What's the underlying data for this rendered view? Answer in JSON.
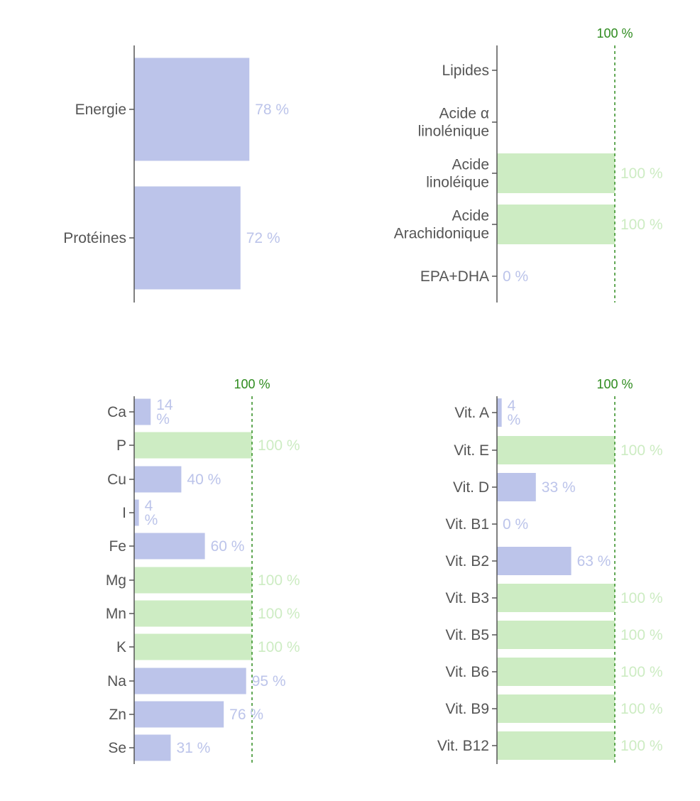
{
  "chart_data": [
    {
      "type": "bar",
      "orientation": "horizontal",
      "categories": [
        "Energie",
        "Protéines"
      ],
      "values": [
        78,
        72
      ],
      "labels": [
        "78 %",
        "72 %"
      ],
      "xlim": [
        0,
        100
      ],
      "reference_line": null,
      "grid": false
    },
    {
      "type": "bar",
      "orientation": "horizontal",
      "categories": [
        [
          "Lipides"
        ],
        [
          "Acide α",
          "linolénique"
        ],
        [
          "Acide",
          "linoléique"
        ],
        [
          "Acide",
          "Arachidonique"
        ],
        [
          "EPA+DHA"
        ]
      ],
      "values": [
        null,
        null,
        100,
        100,
        0
      ],
      "labels": [
        "",
        "",
        "100 %",
        "100 %",
        "0 %"
      ],
      "xlim": [
        0,
        100
      ],
      "reference_line": {
        "value": 100,
        "label": "100 %"
      },
      "grid": false
    },
    {
      "type": "bar",
      "orientation": "horizontal",
      "categories": [
        "Ca",
        "P",
        "Cu",
        "I",
        "Fe",
        "Mg",
        "Mn",
        "K",
        "Na",
        "Zn",
        "Se"
      ],
      "values": [
        14,
        100,
        40,
        4,
        60,
        100,
        100,
        100,
        95,
        76,
        31
      ],
      "labels": [
        [
          "14",
          "%"
        ],
        [
          "100 %"
        ],
        [
          "40 %"
        ],
        [
          "4",
          "%"
        ],
        [
          "60 %"
        ],
        [
          "100 %"
        ],
        [
          "100 %"
        ],
        [
          "100 %"
        ],
        [
          "95 %"
        ],
        [
          "76 %"
        ],
        [
          "31 %"
        ]
      ],
      "xlim": [
        0,
        100
      ],
      "reference_line": {
        "value": 100,
        "label": "100 %"
      },
      "grid": false
    },
    {
      "type": "bar",
      "orientation": "horizontal",
      "categories": [
        "Vit. A",
        "Vit. E",
        "Vit. D",
        "Vit. B1",
        "Vit. B2",
        "Vit. B3",
        "Vit. B5",
        "Vit. B6",
        "Vit. B9",
        "Vit. B12"
      ],
      "values": [
        4,
        100,
        33,
        0,
        63,
        100,
        100,
        100,
        100,
        100
      ],
      "labels": [
        [
          "4",
          "%"
        ],
        [
          "100 %"
        ],
        [
          "33 %"
        ],
        [
          "0 %"
        ],
        [
          "63 %"
        ],
        [
          "100 %"
        ],
        [
          "100 %"
        ],
        [
          "100 %"
        ],
        [
          "100 %"
        ],
        [
          "100 %"
        ]
      ],
      "xlim": [
        0,
        100
      ],
      "reference_line": {
        "value": 100,
        "label": "100 %"
      },
      "grid": false
    }
  ],
  "colors": {
    "below_target_bar": "#bcc4ea",
    "at_target_bar": "#cdecc3",
    "below_target_label": "#bcc4ea",
    "at_target_label": "#cdecc3",
    "reference_line": "#2e8b1e",
    "axis": "#555555",
    "category_text": "#555555"
  }
}
